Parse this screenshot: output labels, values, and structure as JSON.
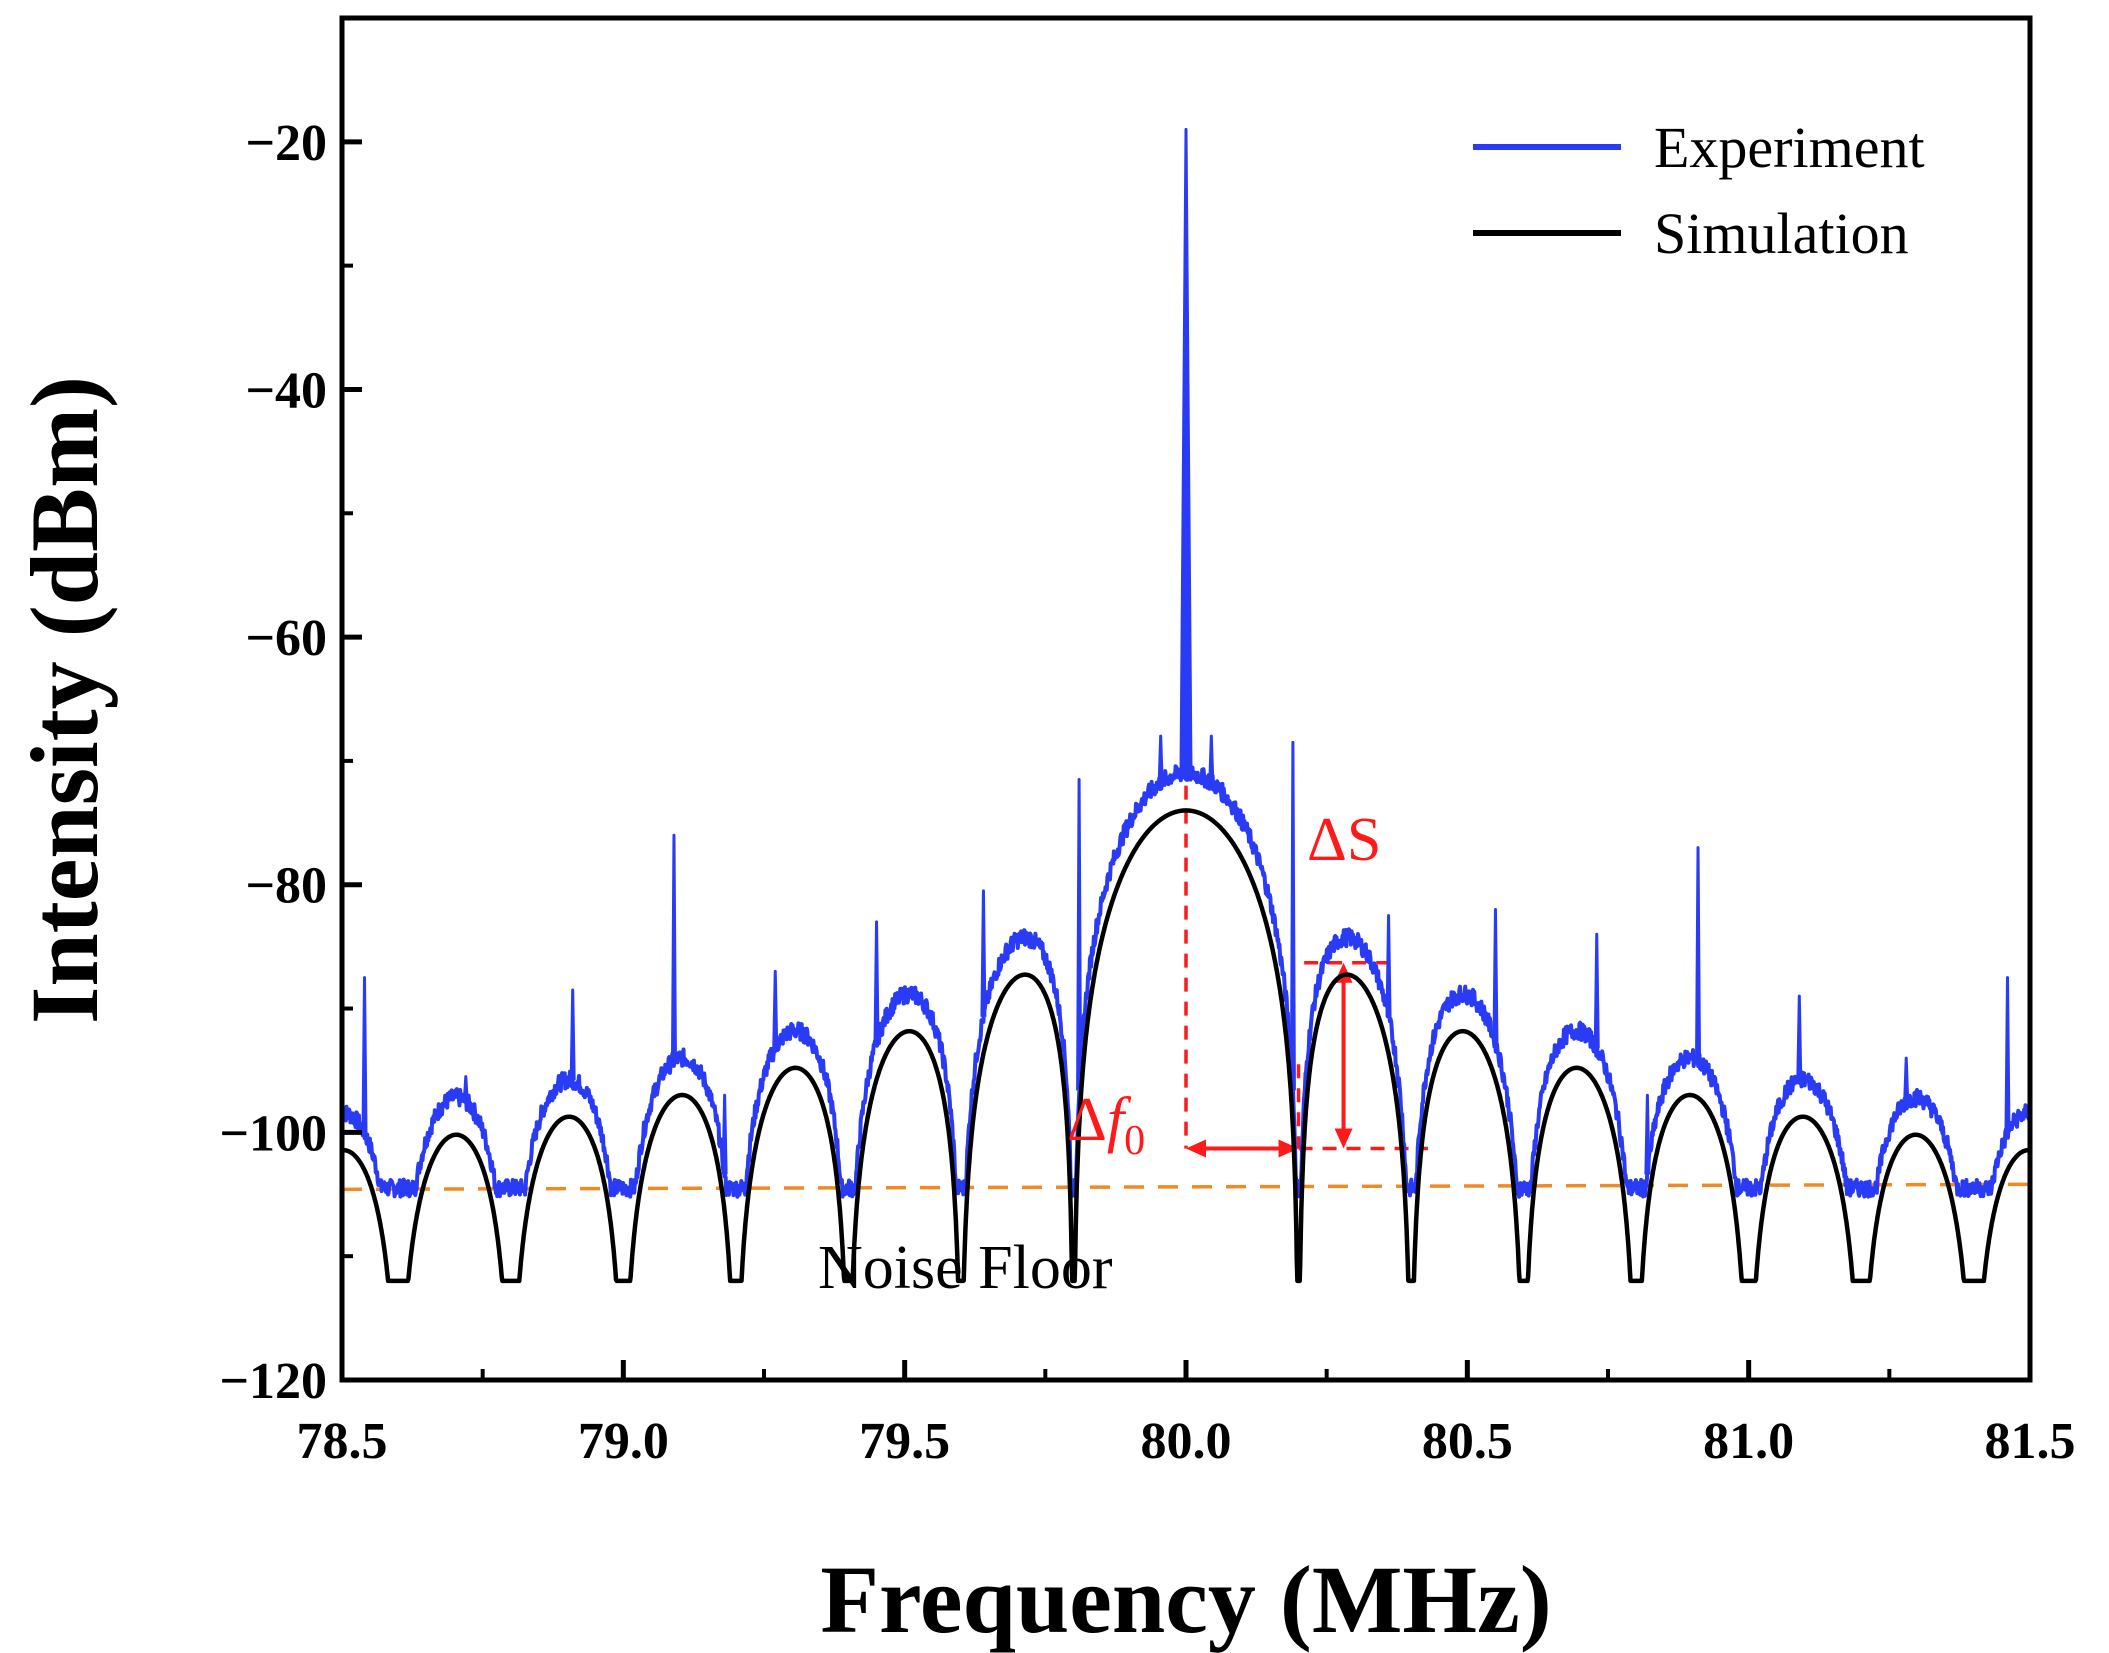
{
  "chart_data": {
    "type": "line",
    "xlabel": "Frequency (MHz)",
    "ylabel": "Intensity (dBm)",
    "xlim": [
      78.5,
      81.5
    ],
    "ylim": [
      -120,
      -10
    ],
    "xticks": [
      78.5,
      79.0,
      79.5,
      80.0,
      80.5,
      81.0,
      81.5
    ],
    "xtick_labels": [
      "78.5",
      "79.0",
      "79.5",
      "80.0",
      "80.5",
      "81.0",
      "81.5"
    ],
    "yticks": [
      -20,
      -40,
      -60,
      -80,
      -100,
      -120
    ],
    "ytick_labels": [
      "−20",
      "−40",
      "−60",
      "−80",
      "−100",
      "−120"
    ],
    "grid": false,
    "legend": {
      "placement": "top-right",
      "entries": [
        "Experiment",
        "Simulation"
      ]
    },
    "series": [
      {
        "name": "Experiment",
        "color": "#2a3bf5",
        "envelope_offset_db": 3,
        "floor_db": -104.5,
        "spikes": [
          {
            "x": 78.54,
            "y": -87.5
          },
          {
            "x": 78.72,
            "y": -95.5
          },
          {
            "x": 78.91,
            "y": -88.5
          },
          {
            "x": 79.09,
            "y": -76
          },
          {
            "x": 79.18,
            "y": -97
          },
          {
            "x": 79.27,
            "y": -87
          },
          {
            "x": 79.45,
            "y": -83
          },
          {
            "x": 79.64,
            "y": -80.5
          },
          {
            "x": 79.81,
            "y": -71.5
          },
          {
            "x": 79.955,
            "y": -68
          },
          {
            "x": 80.0,
            "y": -19
          },
          {
            "x": 80.045,
            "y": -68
          },
          {
            "x": 80.19,
            "y": -68.5
          },
          {
            "x": 80.36,
            "y": -82.5
          },
          {
            "x": 80.55,
            "y": -82
          },
          {
            "x": 80.73,
            "y": -84
          },
          {
            "x": 80.82,
            "y": -97
          },
          {
            "x": 80.91,
            "y": -77
          },
          {
            "x": 81.09,
            "y": -89
          },
          {
            "x": 81.28,
            "y": -94
          },
          {
            "x": 81.46,
            "y": -87.5
          }
        ]
      },
      {
        "name": "Simulation",
        "color": "#000000",
        "model": "sinc-squared",
        "center": 80.0,
        "null_spacing": 0.2,
        "peak_db": -74
      }
    ],
    "annotations": {
      "noise_floor": {
        "label": "Noise Floor",
        "y_start": -104.6,
        "y_end": -104.2,
        "color": "#f08a24"
      },
      "delta_s": {
        "label": "ΔS",
        "x": 80.28,
        "y_top": -86.3,
        "y_bottom": -101.3,
        "color": "#ff1a1a"
      },
      "delta_f0": {
        "label_prefix": "Δ",
        "label_var": "f",
        "label_sub": "0",
        "x_start": 80.0,
        "x_end": 80.2,
        "y": -101.3,
        "color": "#ff1a1a"
      },
      "center_marker": {
        "x": 80.0,
        "y_top": -72,
        "y_bottom": -101.3
      },
      "null_marker": {
        "x": 80.2,
        "y_top": -94.5,
        "y_bottom": -101.3
      }
    }
  }
}
